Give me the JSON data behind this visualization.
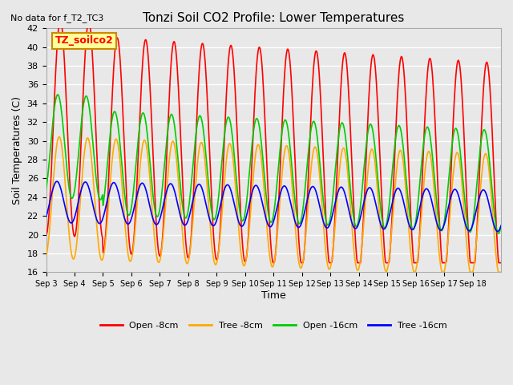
{
  "title": "Tonzi Soil CO2 Profile: Lower Temperatures",
  "subtitle": "No data for f_T2_TC3",
  "ylabel": "Soil Temperatures (C)",
  "xlabel": "Time",
  "legend_label": "TZ_soilco2",
  "series_labels": [
    "Open -8cm",
    "Tree -8cm",
    "Open -16cm",
    "Tree -16cm"
  ],
  "series_colors": [
    "#ff0000",
    "#ffaa00",
    "#00cc00",
    "#0000ff"
  ],
  "ylim": [
    16,
    42
  ],
  "yticks": [
    16,
    18,
    20,
    22,
    24,
    26,
    28,
    30,
    32,
    34,
    36,
    38,
    40,
    42
  ],
  "xtick_labels": [
    "Sep 3",
    "Sep 4",
    "Sep 5",
    "Sep 6",
    "Sep 7",
    "Sep 8",
    "Sep 9",
    "Sep 10",
    "Sep 11",
    "Sep 12",
    "Sep 13",
    "Sep 14",
    "Sep 15",
    "Sep 16",
    "Sep 17",
    "Sep 18"
  ],
  "background_color": "#e8e8e8",
  "plot_bg_color": "#e8e8e8",
  "grid_color": "#ffffff",
  "n_days": 16,
  "points_per_day": 48
}
